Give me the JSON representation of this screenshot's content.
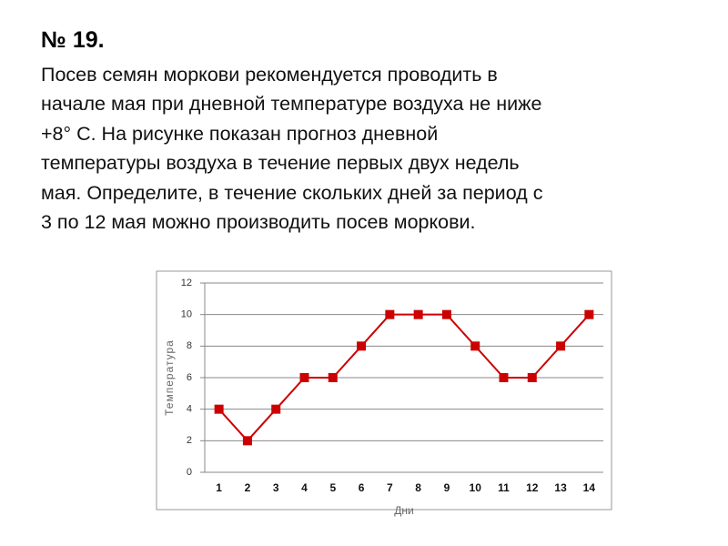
{
  "header": {
    "title": "№ 19."
  },
  "problem": {
    "lines": [
      "Посев семян моркови рекомендуется проводить в",
      "начале мая при дневной температуре воздуха не ниже",
      "+8° С. На рисунке показан прогноз дневной",
      "температуры воздуха в течение первых двух недель",
      "мая. Определите, в течение скольких дней за период с",
      "3 по 12 мая можно производить посев моркови."
    ]
  },
  "chart_data": {
    "type": "line",
    "y_label": "Температура",
    "x_label": "Дни",
    "categories": [
      "1",
      "2",
      "3",
      "4",
      "5",
      "6",
      "7",
      "8",
      "9",
      "10",
      "11",
      "12",
      "13",
      "14"
    ],
    "values": [
      4,
      2,
      4,
      6,
      6,
      8,
      10,
      10,
      10,
      8,
      6,
      6,
      8,
      10
    ],
    "color": "#cc0000",
    "ylim": [
      0,
      12
    ],
    "yticks": [
      0,
      2,
      4,
      6,
      8,
      10,
      12
    ],
    "grid": true
  }
}
